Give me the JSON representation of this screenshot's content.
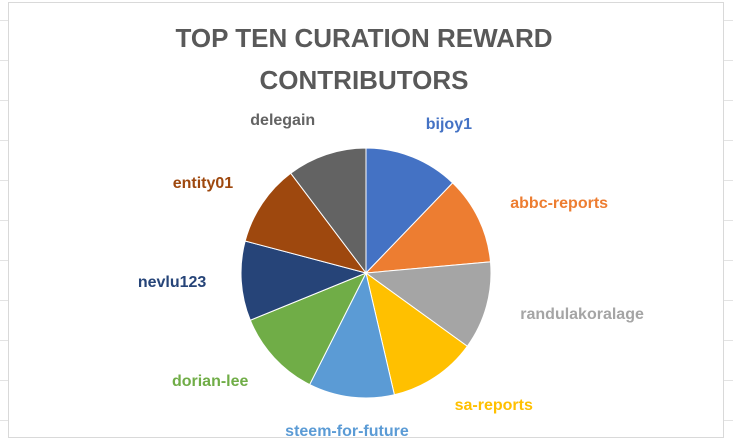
{
  "chart_data": {
    "type": "pie",
    "title": "TOP TEN CURATION REWARD CONTRIBUTORS",
    "categories": [
      "bijoy1",
      "abbc-reports",
      "randulakoralage",
      "sa-reports",
      "steem-for-future",
      "dorian-lee",
      "nevlu123",
      "entity01",
      "delegain"
    ],
    "values": [
      12.2,
      11.4,
      11.4,
      11.4,
      11.1,
      11.4,
      10.3,
      10.6,
      10.3
    ],
    "colors": [
      "#4472c4",
      "#ed7d31",
      "#a5a5a5",
      "#ffc000",
      "#5b9bd5",
      "#70ad47",
      "#264478",
      "#9e480e",
      "#636363"
    ]
  }
}
